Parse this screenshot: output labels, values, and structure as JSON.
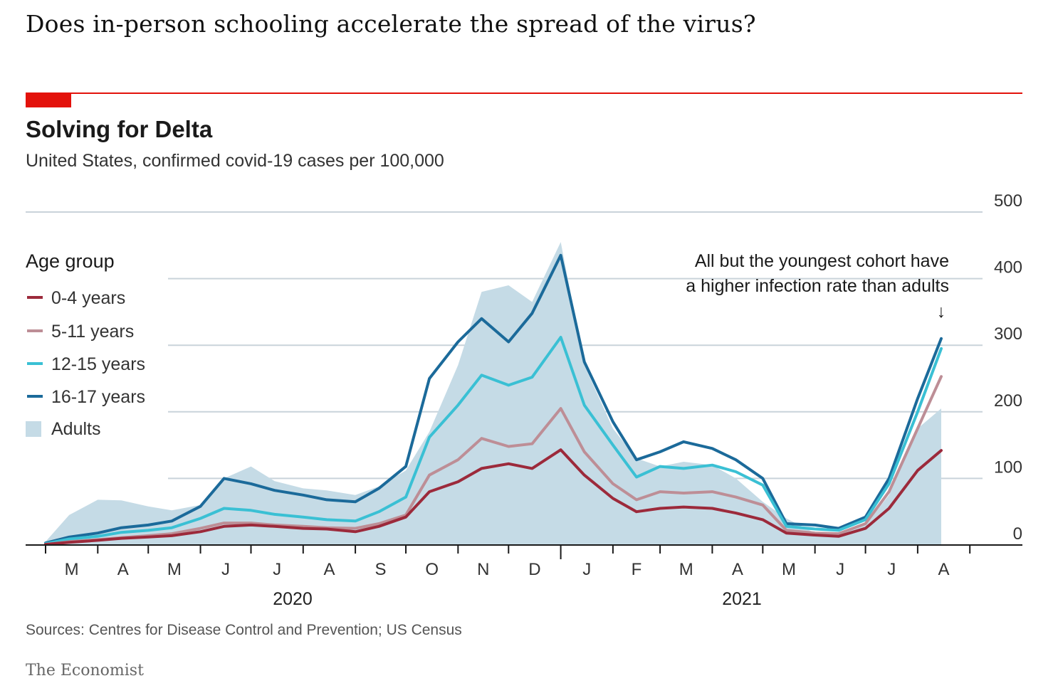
{
  "headline": "Does in-person schooling accelerate the spread of the virus?",
  "colors": {
    "accent_red": "#e3120b",
    "gridline": "#c9d3da",
    "adults_fill": "#c5dbe6",
    "age_0_4": "#9c2a3b",
    "age_5_11": "#bd8e96",
    "age_12_15": "#3ac0d4",
    "age_16_17": "#1b6a9a"
  },
  "chart_data": {
    "type": "line",
    "title": "Solving for Delta",
    "subtitle": "United States, confirmed covid-19 cases per 100,000",
    "ylim": [
      0,
      500
    ],
    "y_ticks": [
      "500",
      "400",
      "300",
      "200",
      "100",
      "0"
    ],
    "y_tick_values": [
      500,
      400,
      300,
      200,
      100,
      0
    ],
    "month_labels": [
      "M",
      "A",
      "M",
      "J",
      "J",
      "A",
      "S",
      "O",
      "N",
      "D",
      "J",
      "F",
      "M",
      "A",
      "M",
      "J",
      "J",
      "A"
    ],
    "year_labels": [
      "2020",
      "2021"
    ],
    "x_start": "2020-03",
    "x_end": "2021-09",
    "grid": true,
    "legend": {
      "title": "Age group",
      "placement": "left",
      "entries": [
        "0-4 years",
        "5-11 years",
        "12-15 years",
        "16-17 years",
        "Adults"
      ]
    },
    "annotation": {
      "lines": [
        "All but the youngest cohort have",
        "a higher infection rate than adults"
      ],
      "arrow": "↓"
    },
    "x": [
      "2020-03-01",
      "2020-03-15",
      "2020-04-01",
      "2020-04-15",
      "2020-05-01",
      "2020-05-15",
      "2020-06-01",
      "2020-06-15",
      "2020-07-01",
      "2020-07-15",
      "2020-08-01",
      "2020-08-15",
      "2020-09-01",
      "2020-09-15",
      "2020-10-01",
      "2020-10-15",
      "2020-11-01",
      "2020-11-15",
      "2020-12-01",
      "2020-12-15",
      "2021-01-01",
      "2021-01-15",
      "2021-02-01",
      "2021-02-15",
      "2021-03-01",
      "2021-03-15",
      "2021-04-01",
      "2021-04-15",
      "2021-05-01",
      "2021-05-15",
      "2021-06-01",
      "2021-06-15",
      "2021-07-01",
      "2021-07-15",
      "2021-08-01",
      "2021-08-15"
    ],
    "series": [
      {
        "name": "Adults",
        "style": "area",
        "color": "#c5dbe6",
        "values": [
          5,
          45,
          68,
          67,
          58,
          52,
          60,
          100,
          118,
          96,
          85,
          82,
          75,
          88,
          112,
          170,
          270,
          380,
          390,
          365,
          455,
          270,
          175,
          130,
          118,
          125,
          120,
          100,
          65,
          40,
          18,
          18,
          30,
          75,
          175,
          205
        ]
      },
      {
        "name": "16-17 years",
        "style": "line",
        "color": "#1b6a9a",
        "values": [
          3,
          12,
          18,
          26,
          30,
          36,
          58,
          100,
          92,
          82,
          75,
          68,
          65,
          85,
          118,
          250,
          305,
          340,
          305,
          348,
          435,
          275,
          185,
          128,
          140,
          155,
          145,
          128,
          100,
          32,
          30,
          25,
          42,
          100,
          220,
          310
        ]
      },
      {
        "name": "12-15 years",
        "style": "line",
        "color": "#3ac0d4",
        "values": [
          2,
          9,
          13,
          19,
          22,
          26,
          40,
          55,
          52,
          46,
          42,
          38,
          36,
          50,
          72,
          162,
          210,
          255,
          240,
          252,
          312,
          210,
          150,
          102,
          118,
          115,
          120,
          110,
          90,
          28,
          24,
          22,
          38,
          92,
          200,
          295
        ]
      },
      {
        "name": "5-11 years",
        "style": "line",
        "color": "#bd8e96",
        "values": [
          1,
          5,
          8,
          11,
          14,
          17,
          25,
          33,
          33,
          30,
          28,
          26,
          25,
          32,
          45,
          105,
          128,
          160,
          148,
          152,
          205,
          140,
          92,
          68,
          80,
          78,
          80,
          72,
          60,
          22,
          18,
          17,
          32,
          80,
          175,
          253
        ]
      },
      {
        "name": "0-4 years",
        "style": "line",
        "color": "#9c2a3b",
        "values": [
          1,
          4,
          7,
          10,
          12,
          14,
          20,
          28,
          30,
          28,
          25,
          24,
          20,
          28,
          42,
          80,
          95,
          115,
          122,
          115,
          143,
          105,
          70,
          50,
          55,
          57,
          55,
          48,
          38,
          18,
          15,
          13,
          25,
          55,
          112,
          142
        ]
      }
    ]
  },
  "sources": "Sources: Centres for Disease Control and Prevention; US Census",
  "brand": "The Economist"
}
